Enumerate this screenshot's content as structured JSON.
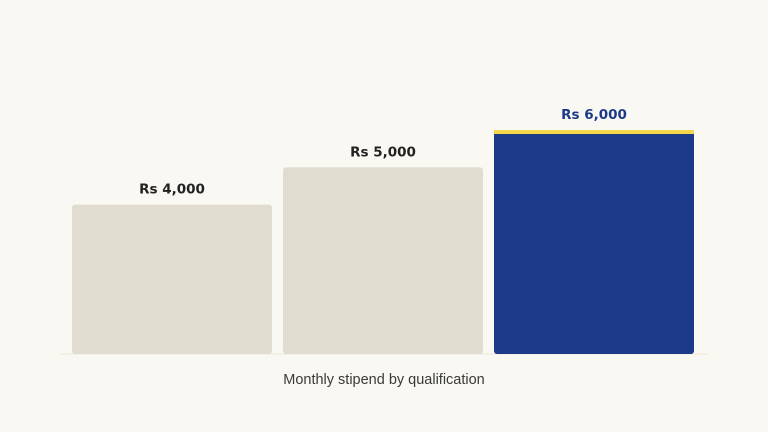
{
  "chart_data": {
    "type": "bar",
    "categories": [
      "",
      "",
      ""
    ],
    "values": [
      4000,
      5000,
      6000
    ],
    "value_labels": [
      "Rs 4,000",
      "Rs 5,000",
      "Rs 6,000"
    ],
    "highlight_index": 2,
    "caption": "Monthly stipend by qualification",
    "ylim": [
      0,
      6000
    ],
    "grid": false,
    "legend": "none"
  },
  "colors": {
    "background": "#faf8f2",
    "bar": "#e0dccf",
    "highlight_bar": "#1d3a8a",
    "highlight_accent": "#f3d64a",
    "label": "#222222",
    "highlight_label": "#1d3a8a",
    "baseline": "#ece8dc"
  }
}
